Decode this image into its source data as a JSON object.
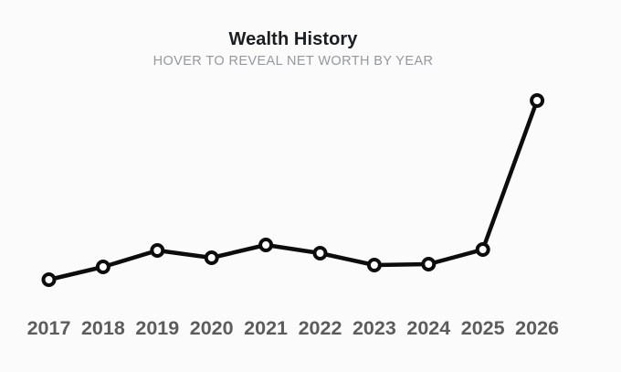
{
  "page": {
    "background": "#fbfbfb"
  },
  "header": {
    "title": "Wealth History",
    "subtitle": "HOVER TO REVEAL NET WORTH BY YEAR"
  },
  "chart_data": {
    "type": "line",
    "title": "Wealth History",
    "subtitle": "HOVER TO REVEAL NET WORTH BY YEAR",
    "categories": [
      "2017",
      "2018",
      "2019",
      "2020",
      "2021",
      "2022",
      "2023",
      "2024",
      "2025",
      "2026"
    ],
    "values": [
      24,
      38,
      56,
      48,
      62,
      53,
      40,
      41,
      57,
      220
    ],
    "value_axis_visible": false,
    "value_note": "no numeric axis or data labels shown; values are relative units estimated from point heights, actual net worth is revealed on hover",
    "ylim": [
      0,
      240
    ],
    "grid": false,
    "legend": false,
    "line_color": "#0d0d0d",
    "marker_fill": "#ffffff",
    "marker_stroke": "#0d0d0d",
    "x_label_color": "#5c5c5c"
  }
}
